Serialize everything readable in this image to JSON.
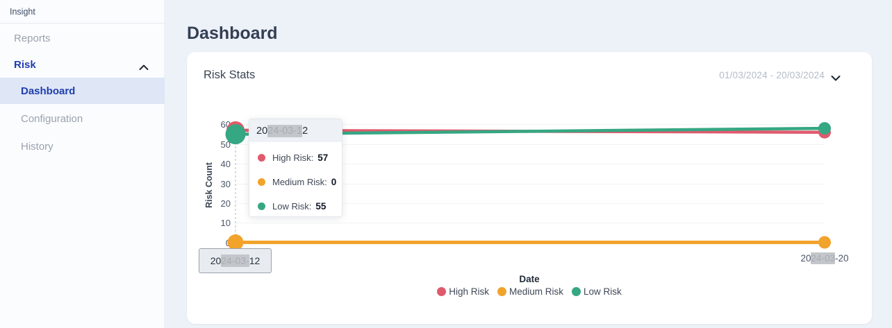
{
  "sidebar": {
    "brand": "Insight",
    "items": [
      {
        "label": "Reports"
      },
      {
        "label": "Risk"
      },
      {
        "label": "Dashboard"
      },
      {
        "label": "Configuration"
      },
      {
        "label": "History"
      }
    ]
  },
  "header": {
    "title": "Dashboard"
  },
  "card": {
    "title": "Risk Stats",
    "date_range": "01/03/2024 - 20/03/2024"
  },
  "y_axis": {
    "title": "Risk Count",
    "ticks": [
      "60",
      "50",
      "40",
      "30",
      "20",
      "10",
      "0"
    ]
  },
  "x_axis": {
    "title": "Date",
    "right_label": {
      "prefix": "20",
      "redacted": "24-03",
      "suffix": "-20"
    }
  },
  "axis_pointer": {
    "label": {
      "prefix": "20",
      "redacted": "24-03-",
      "suffix": "12"
    }
  },
  "tooltip": {
    "header": {
      "prefix": "20",
      "redacted": "24-03-1",
      "suffix": "2"
    },
    "rows": [
      {
        "label": "High Risk:",
        "value": "57"
      },
      {
        "label": "Medium Risk:",
        "value": "0"
      },
      {
        "label": "Low Risk:",
        "value": "55"
      }
    ]
  },
  "colors": {
    "high_risk": "#e05a6d",
    "medium_risk": "#f1a32c",
    "low_risk": "#36a783",
    "active_nav": "#1e3eae",
    "card_bg": "#ffffff",
    "page_bg": "#edf1f8"
  },
  "chart_data": {
    "type": "line",
    "x": [
      "2024-03-12",
      "2024-03-20"
    ],
    "series": [
      {
        "name": "High Risk",
        "color": "#e05a6d",
        "values": [
          57,
          56
        ]
      },
      {
        "name": "Medium Risk",
        "color": "#f1a32c",
        "values": [
          0,
          0
        ]
      },
      {
        "name": "Low Risk",
        "color": "#36a783",
        "values": [
          55,
          58
        ]
      }
    ],
    "xlabel": "Date",
    "ylabel": "Risk Count",
    "ylim": [
      0,
      60
    ],
    "y_tick_step": 10,
    "grid": true,
    "legend_position": "bottom",
    "hovered_point": {
      "x": "2024-03-12",
      "High Risk": 57,
      "Medium Risk": 0,
      "Low Risk": 55
    }
  }
}
